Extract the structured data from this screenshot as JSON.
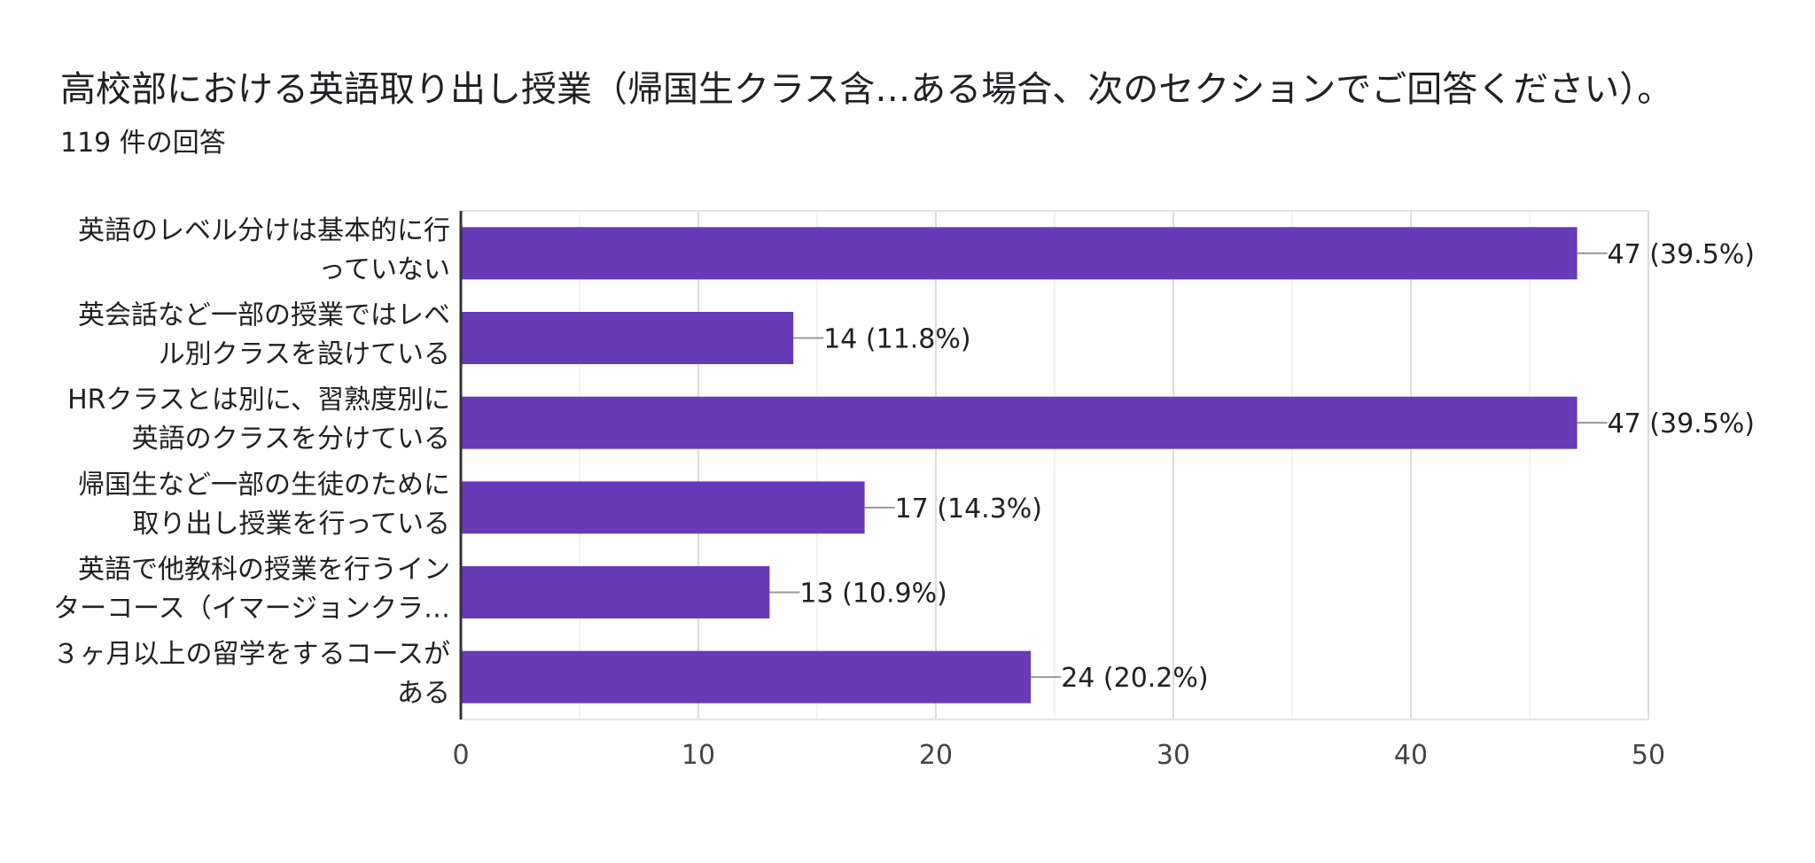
{
  "header": {
    "title": "高校部における英語取り出し授業（帰国生クラス含…ある場合、次のセクションでご回答ください）。",
    "response_count": "119 件の回答"
  },
  "colors": {
    "bar": "#673ab7",
    "axis": "#333333",
    "grid": "#e8e8e8",
    "leader": "#999999"
  },
  "chart_data": {
    "type": "bar",
    "orientation": "horizontal",
    "title": "高校部における英語取り出し授業（帰国生クラス含…ある場合、次のセクションでご回答ください）。",
    "xlabel": "",
    "ylabel": "",
    "xlim": [
      0,
      50
    ],
    "xticks": [
      0,
      10,
      20,
      30,
      40,
      50
    ],
    "grid": true,
    "categories": [
      [
        "英語のレベル分けは基本的に行",
        "っていない"
      ],
      [
        "英会話など一部の授業ではレベ",
        "ル別クラスを設けている"
      ],
      [
        "HRクラスとは別に、習熟度別に",
        "英語のクラスを分けている"
      ],
      [
        "帰国生など一部の生徒のために",
        "取り出し授業を行っている"
      ],
      [
        "英語で他教科の授業を行うイン",
        "ターコース（イマージョンクラ…"
      ],
      [
        "３ヶ月以上の留学をするコースが",
        "ある"
      ]
    ],
    "values": [
      47,
      14,
      47,
      17,
      13,
      24
    ],
    "data_labels": [
      "47 (39.5%)",
      "14 (11.8%)",
      "47 (39.5%)",
      "17 (14.3%)",
      "13 (10.9%)",
      "24 (20.2%)"
    ]
  }
}
